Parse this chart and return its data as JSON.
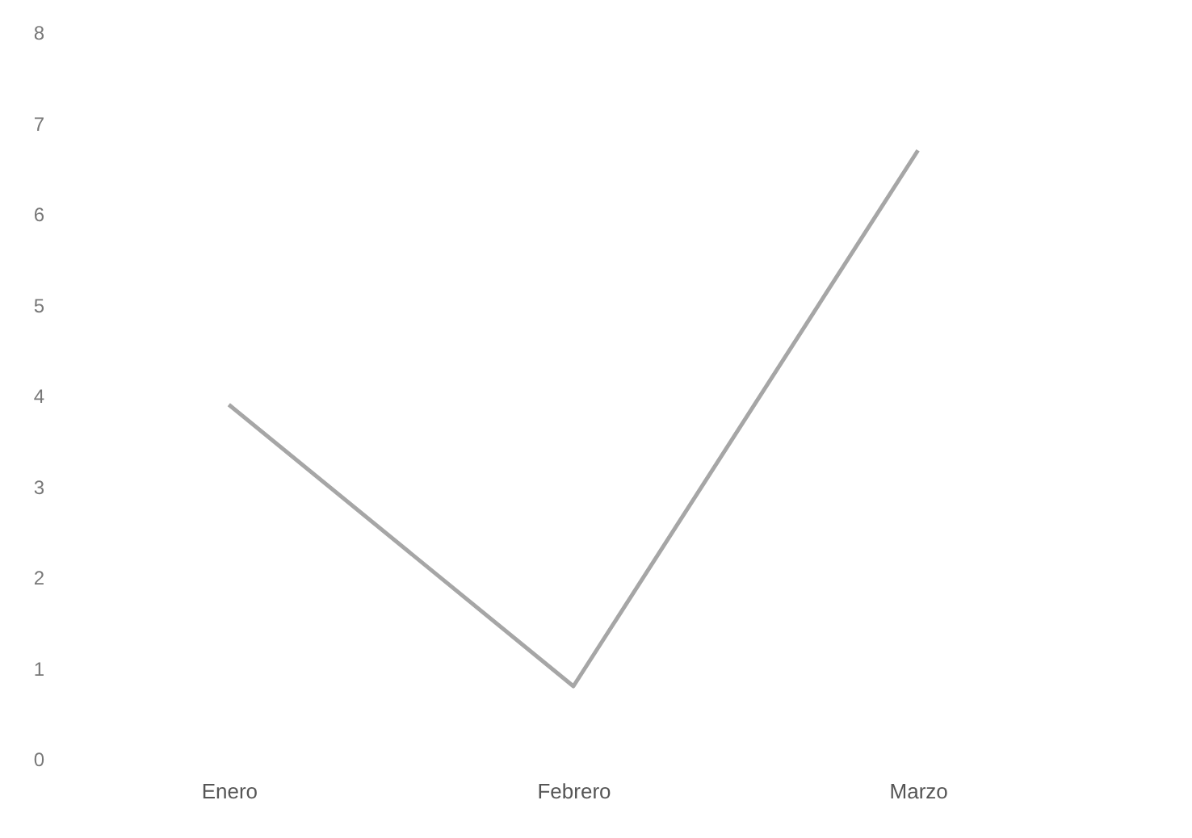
{
  "chart_data": {
    "type": "line",
    "categories": [
      "Enero",
      "Febrero",
      "Marzo"
    ],
    "series": [
      {
        "color": "#a6a6a6",
        "values": [
          3.9,
          0.8,
          6.7
        ]
      }
    ],
    "ylim": [
      0,
      8
    ],
    "yticks": [
      0,
      1,
      2,
      3,
      4,
      5,
      6,
      7,
      8
    ],
    "grid": false,
    "legend": false
  }
}
